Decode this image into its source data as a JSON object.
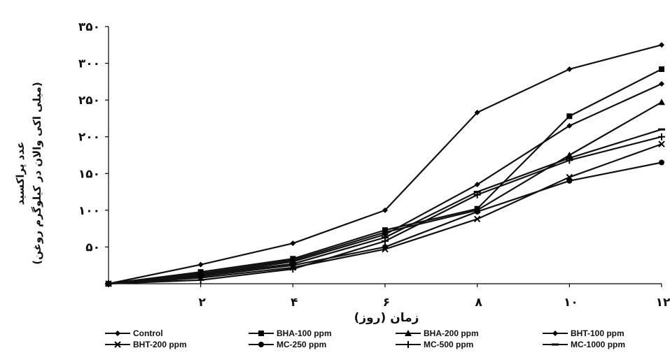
{
  "chart_data": {
    "type": "line",
    "x": [
      0,
      2,
      4,
      6,
      8,
      10,
      12
    ],
    "x_tick_labels": [
      "۲",
      "۴",
      "۶",
      "۸",
      "۱۰",
      "۱۲"
    ],
    "y_tick_labels": [
      "۵۰",
      "۱۰۰",
      "۱۵۰",
      "۲۰۰",
      "۲۵۰",
      "۳۰۰",
      "۳۵۰"
    ],
    "ylim": [
      0,
      350
    ],
    "xlim": [
      0,
      12
    ],
    "xlabel": "زمان (روز)",
    "ylabel": "عدد پراکسید",
    "ylabel2": "(میلی اکی والان در کیلوگرم روغن)",
    "grid": false,
    "legend_position": "bottom",
    "series": [
      {
        "name": "Control",
        "marker": "diamond",
        "values": [
          0,
          26,
          55,
          100,
          233,
          292,
          325
        ]
      },
      {
        "name": "BHA-100 ppm",
        "marker": "square",
        "values": [
          0,
          16,
          34,
          73,
          102,
          228,
          292
        ]
      },
      {
        "name": "BHA-200 ppm",
        "marker": "triangle",
        "values": [
          0,
          14,
          32,
          70,
          100,
          175,
          247
        ]
      },
      {
        "name": "BHT-100 ppm",
        "marker": "diamond",
        "values": [
          0,
          12,
          30,
          67,
          135,
          215,
          272
        ]
      },
      {
        "name": "BHT-200 ppm",
        "marker": "x",
        "values": [
          0,
          8,
          22,
          47,
          88,
          145,
          190
        ]
      },
      {
        "name": "MC-250 ppm",
        "marker": "circle",
        "values": [
          0,
          10,
          25,
          50,
          98,
          140,
          165
        ]
      },
      {
        "name": "MC-500 ppm",
        "marker": "plus",
        "values": [
          0,
          5,
          20,
          58,
          121,
          168,
          200
        ]
      },
      {
        "name": "MC-1000 ppm",
        "marker": "dash",
        "values": [
          0,
          12,
          27,
          63,
          125,
          171,
          210
        ]
      }
    ]
  }
}
